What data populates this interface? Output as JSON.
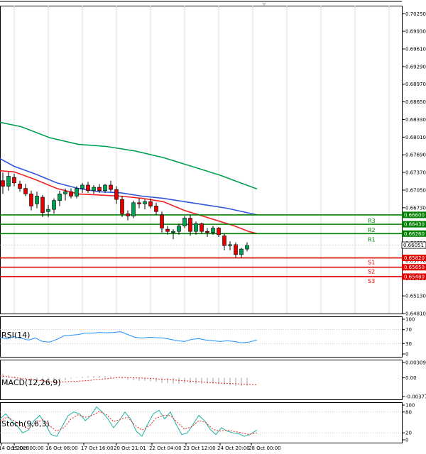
{
  "chart_data": [
    {
      "type": "candlestick",
      "panel": "price",
      "ylim": [
        0.6481,
        0.70395
      ],
      "y_ticks": [
        "0.70250",
        "0.69930",
        "0.69610",
        "0.69290",
        "0.68970",
        "0.68650",
        "0.68330",
        "0.68010",
        "0.67690",
        "0.67370",
        "0.67050",
        "0.66730",
        "0.66410",
        "0.66090",
        "0.65770",
        "0.65450",
        "0.65130",
        "0.64810"
      ],
      "current_price": "0.66051",
      "current_price_value": 0.66051,
      "levels": [
        {
          "name": "R3",
          "value": 0.666,
          "label": "0.66600",
          "color": "#008000"
        },
        {
          "name": "R2",
          "value": 0.6643,
          "label": "0.66430",
          "color": "#008000"
        },
        {
          "name": "R1",
          "value": 0.6626,
          "label": "0.66260",
          "color": "#008000"
        },
        {
          "name": "S1",
          "value": 0.6582,
          "label": "0.65820",
          "color": "#e00000"
        },
        {
          "name": "S2",
          "value": 0.6565,
          "label": "0.65650",
          "color": "#e00000"
        },
        {
          "name": "S3",
          "value": 0.6548,
          "label": "0.65480",
          "color": "#e00000"
        }
      ],
      "x_labels": [
        "14 Oct 2020",
        "15 Oct 00:00",
        "16 Oct 08:00",
        "17 Oct 16:00",
        "20 Oct 21:01",
        "22 Oct 04:00",
        "23 Oct 12:00",
        "24 Oct 20:00",
        "28 Oct 00:00"
      ],
      "candles": [
        {
          "o": 0.6722,
          "h": 0.6737,
          "l": 0.6698,
          "c": 0.6712
        },
        {
          "o": 0.6712,
          "h": 0.6738,
          "l": 0.6704,
          "c": 0.673
        },
        {
          "o": 0.6728,
          "h": 0.6735,
          "l": 0.6712,
          "c": 0.6718
        },
        {
          "o": 0.6716,
          "h": 0.6722,
          "l": 0.6702,
          "c": 0.6708
        },
        {
          "o": 0.6708,
          "h": 0.6716,
          "l": 0.6694,
          "c": 0.6698
        },
        {
          "o": 0.6698,
          "h": 0.6704,
          "l": 0.6668,
          "c": 0.6676
        },
        {
          "o": 0.668,
          "h": 0.6702,
          "l": 0.6672,
          "c": 0.6694
        },
        {
          "o": 0.6692,
          "h": 0.6696,
          "l": 0.6656,
          "c": 0.6664
        },
        {
          "o": 0.6666,
          "h": 0.6678,
          "l": 0.6656,
          "c": 0.667
        },
        {
          "o": 0.667,
          "h": 0.669,
          "l": 0.6662,
          "c": 0.6686
        },
        {
          "o": 0.6686,
          "h": 0.6704,
          "l": 0.6676,
          "c": 0.6698
        },
        {
          "o": 0.6698,
          "h": 0.6708,
          "l": 0.6686,
          "c": 0.6702
        },
        {
          "o": 0.6702,
          "h": 0.6708,
          "l": 0.669,
          "c": 0.6694
        },
        {
          "o": 0.6694,
          "h": 0.6712,
          "l": 0.669,
          "c": 0.6708
        },
        {
          "o": 0.6708,
          "h": 0.6718,
          "l": 0.67,
          "c": 0.6714
        },
        {
          "o": 0.6714,
          "h": 0.672,
          "l": 0.67,
          "c": 0.6704
        },
        {
          "o": 0.6704,
          "h": 0.6714,
          "l": 0.6698,
          "c": 0.671
        },
        {
          "o": 0.671,
          "h": 0.6716,
          "l": 0.67,
          "c": 0.6704
        },
        {
          "o": 0.6704,
          "h": 0.6716,
          "l": 0.67,
          "c": 0.6714
        },
        {
          "o": 0.6714,
          "h": 0.6722,
          "l": 0.6702,
          "c": 0.6706
        },
        {
          "o": 0.6706,
          "h": 0.6712,
          "l": 0.668,
          "c": 0.6688
        },
        {
          "o": 0.6688,
          "h": 0.6694,
          "l": 0.6656,
          "c": 0.6662
        },
        {
          "o": 0.6662,
          "h": 0.6668,
          "l": 0.665,
          "c": 0.6658
        },
        {
          "o": 0.6658,
          "h": 0.6686,
          "l": 0.6654,
          "c": 0.6682
        },
        {
          "o": 0.6682,
          "h": 0.669,
          "l": 0.6672,
          "c": 0.668
        },
        {
          "o": 0.668,
          "h": 0.6688,
          "l": 0.667,
          "c": 0.6684
        },
        {
          "o": 0.6684,
          "h": 0.669,
          "l": 0.6672,
          "c": 0.6676
        },
        {
          "o": 0.6676,
          "h": 0.6682,
          "l": 0.666,
          "c": 0.6666
        },
        {
          "o": 0.666,
          "h": 0.6666,
          "l": 0.6628,
          "c": 0.6636
        },
        {
          "o": 0.6634,
          "h": 0.664,
          "l": 0.6624,
          "c": 0.663
        },
        {
          "o": 0.6628,
          "h": 0.6634,
          "l": 0.6616,
          "c": 0.663
        },
        {
          "o": 0.663,
          "h": 0.6644,
          "l": 0.6624,
          "c": 0.664
        },
        {
          "o": 0.664,
          "h": 0.6658,
          "l": 0.6636,
          "c": 0.6654
        },
        {
          "o": 0.6654,
          "h": 0.666,
          "l": 0.6622,
          "c": 0.663
        },
        {
          "o": 0.663,
          "h": 0.6648,
          "l": 0.6624,
          "c": 0.6644
        },
        {
          "o": 0.6644,
          "h": 0.6646,
          "l": 0.6626,
          "c": 0.663
        },
        {
          "o": 0.663,
          "h": 0.6636,
          "l": 0.662,
          "c": 0.6628
        },
        {
          "o": 0.6628,
          "h": 0.664,
          "l": 0.6624,
          "c": 0.6636
        },
        {
          "o": 0.6636,
          "h": 0.6638,
          "l": 0.662,
          "c": 0.6624
        },
        {
          "o": 0.6622,
          "h": 0.6626,
          "l": 0.6596,
          "c": 0.6604
        },
        {
          "o": 0.6604,
          "h": 0.6612,
          "l": 0.6596,
          "c": 0.6606
        },
        {
          "o": 0.6606,
          "h": 0.661,
          "l": 0.6582,
          "c": 0.6588
        },
        {
          "o": 0.6588,
          "h": 0.66,
          "l": 0.6582,
          "c": 0.6598
        },
        {
          "o": 0.6598,
          "h": 0.661,
          "l": 0.6594,
          "c": 0.6605
        }
      ],
      "series": [
        {
          "color": "#00a050",
          "values": [
            [
              0,
              0.6828
            ],
            [
              30,
              0.682
            ],
            [
              70,
              0.68
            ],
            [
              110,
              0.6788
            ],
            [
              150,
              0.6784
            ],
            [
              190,
              0.6776
            ],
            [
              230,
              0.6764
            ],
            [
              270,
              0.6748
            ],
            [
              310,
              0.6732
            ],
            [
              362,
              0.6707
            ]
          ]
        },
        {
          "color": "#3355dd",
          "values": [
            [
              0,
              0.6762
            ],
            [
              20,
              0.6748
            ],
            [
              50,
              0.6734
            ],
            [
              80,
              0.6718
            ],
            [
              110,
              0.6708
            ],
            [
              140,
              0.6702
            ],
            [
              170,
              0.67
            ],
            [
              200,
              0.6694
            ],
            [
              230,
              0.669
            ],
            [
              260,
              0.6684
            ],
            [
              290,
              0.6678
            ],
            [
              320,
              0.6672
            ],
            [
              362,
              0.666
            ]
          ]
        },
        {
          "color": "#ee2222",
          "values": [
            [
              0,
              0.674
            ],
            [
              20,
              0.6738
            ],
            [
              50,
              0.6724
            ],
            [
              80,
              0.6708
            ],
            [
              110,
              0.6698
            ],
            [
              140,
              0.6696
            ],
            [
              170,
              0.6694
            ],
            [
              200,
              0.669
            ],
            [
              230,
              0.6684
            ],
            [
              260,
              0.6668
            ],
            [
              290,
              0.6656
            ],
            [
              310,
              0.6648
            ],
            [
              330,
              0.664
            ],
            [
              350,
              0.663
            ],
            [
              362,
              0.6626
            ]
          ]
        }
      ]
    },
    {
      "type": "line",
      "panel": "rsi",
      "label": "RSI(14)",
      "ylim": [
        0,
        100
      ],
      "y_ticks": [
        "100",
        "70",
        "30",
        "0"
      ],
      "series": [
        {
          "color": "#1e90ff",
          "values": [
            [
              0,
              48
            ],
            [
              10,
              43
            ],
            [
              20,
              50
            ],
            [
              30,
              45
            ],
            [
              40,
              40
            ],
            [
              50,
              46
            ],
            [
              60,
              36
            ],
            [
              70,
              34
            ],
            [
              80,
              42
            ],
            [
              90,
              52
            ],
            [
              100,
              54
            ],
            [
              110,
              56
            ],
            [
              120,
              60
            ],
            [
              130,
              60
            ],
            [
              140,
              62
            ],
            [
              150,
              61
            ],
            [
              160,
              62
            ],
            [
              170,
              64
            ],
            [
              180,
              56
            ],
            [
              190,
              48
            ],
            [
              200,
              46
            ],
            [
              210,
              48
            ],
            [
              220,
              47
            ],
            [
              230,
              46
            ],
            [
              240,
              42
            ],
            [
              250,
              38
            ],
            [
              260,
              36
            ],
            [
              270,
              42
            ],
            [
              280,
              44
            ],
            [
              290,
              40
            ],
            [
              300,
              38
            ],
            [
              310,
              36
            ],
            [
              320,
              38
            ],
            [
              330,
              36
            ],
            [
              340,
              32
            ],
            [
              350,
              34
            ],
            [
              362,
              40
            ]
          ]
        }
      ]
    },
    {
      "type": "histogram",
      "panel": "macd",
      "label": "MACD(12,26,9)",
      "ylim": [
        -0.003776,
        0.003093
      ],
      "y_ticks": [
        "0.003093",
        "0.00",
        "-0.003776"
      ],
      "values": [
        0.0008,
        0.0005,
        0.0002,
        -0.0001,
        -0.0004,
        -0.0008,
        -0.0011,
        -0.0012,
        -0.0012,
        -0.001,
        -0.0008,
        -0.0005,
        -0.0002,
        0.0001,
        0.0002,
        0.0003,
        0.0004,
        0.0004,
        0.0004,
        0.0003,
        0.0001,
        -0.0002,
        -0.0004,
        -0.0005,
        -0.0006,
        -0.0006,
        -0.0007,
        -0.0008,
        -0.001,
        -0.0011,
        -0.0012,
        -0.0012,
        -0.0011,
        -0.0011,
        -0.0012,
        -0.0012,
        -0.0012,
        -0.0012,
        -0.0013,
        -0.0014,
        -0.0015,
        -0.0016,
        -0.0016,
        -0.0016
      ],
      "signal": {
        "color": "#ee2222",
        "values": [
          [
            0,
            0.0004
          ],
          [
            40,
            -0.0003
          ],
          [
            80,
            -0.0009
          ],
          [
            120,
            -0.0006
          ],
          [
            170,
            0.0001
          ],
          [
            210,
            -0.0001
          ],
          [
            250,
            -0.0005
          ],
          [
            300,
            -0.001
          ],
          [
            362,
            -0.0014
          ]
        ]
      }
    },
    {
      "type": "line",
      "panel": "stoch",
      "label": "Stoch(9,6,3)",
      "ylim": [
        0,
        100
      ],
      "y_ticks": [
        "100",
        "80",
        "20",
        "0"
      ],
      "series": [
        {
          "color": "#20b2aa",
          "values": [
            [
              0,
              60
            ],
            [
              8,
              75
            ],
            [
              16,
              55
            ],
            [
              24,
              40
            ],
            [
              32,
              20
            ],
            [
              40,
              28
            ],
            [
              48,
              55
            ],
            [
              56,
              70
            ],
            [
              64,
              45
            ],
            [
              72,
              15
            ],
            [
              80,
              10
            ],
            [
              88,
              40
            ],
            [
              96,
              70
            ],
            [
              104,
              80
            ],
            [
              112,
              75
            ],
            [
              120,
              55
            ],
            [
              128,
              70
            ],
            [
              136,
              95
            ],
            [
              144,
              80
            ],
            [
              152,
              60
            ],
            [
              160,
              35
            ],
            [
              168,
              55
            ],
            [
              176,
              80
            ],
            [
              184,
              60
            ],
            [
              192,
              25
            ],
            [
              200,
              10
            ],
            [
              208,
              45
            ],
            [
              216,
              75
            ],
            [
              224,
              85
            ],
            [
              232,
              60
            ],
            [
              240,
              80
            ],
            [
              248,
              45
            ],
            [
              256,
              15
            ],
            [
              264,
              20
            ],
            [
              272,
              45
            ],
            [
              280,
              70
            ],
            [
              288,
              55
            ],
            [
              296,
              30
            ],
            [
              304,
              15
            ],
            [
              312,
              35
            ],
            [
              320,
              25
            ],
            [
              328,
              20
            ],
            [
              336,
              18
            ],
            [
              344,
              10
            ],
            [
              352,
              15
            ],
            [
              362,
              28
            ]
          ]
        },
        {
          "color": "#ee2222",
          "values": [
            [
              0,
              55
            ],
            [
              10,
              65
            ],
            [
              20,
              55
            ],
            [
              30,
              40
            ],
            [
              40,
              32
            ],
            [
              50,
              48
            ],
            [
              60,
              58
            ],
            [
              70,
              40
            ],
            [
              80,
              25
            ],
            [
              90,
              35
            ],
            [
              100,
              60
            ],
            [
              110,
              72
            ],
            [
              120,
              65
            ],
            [
              130,
              70
            ],
            [
              140,
              82
            ],
            [
              150,
              72
            ],
            [
              160,
              52
            ],
            [
              170,
              60
            ],
            [
              180,
              65
            ],
            [
              190,
              42
            ],
            [
              200,
              28
            ],
            [
              210,
              40
            ],
            [
              220,
              62
            ],
            [
              230,
              70
            ],
            [
              240,
              70
            ],
            [
              250,
              50
            ],
            [
              260,
              30
            ],
            [
              270,
              38
            ],
            [
              280,
              55
            ],
            [
              290,
              50
            ],
            [
              300,
              30
            ],
            [
              310,
              25
            ],
            [
              320,
              28
            ],
            [
              330,
              24
            ],
            [
              340,
              20
            ],
            [
              350,
              16
            ],
            [
              362,
              20
            ]
          ]
        }
      ]
    }
  ]
}
